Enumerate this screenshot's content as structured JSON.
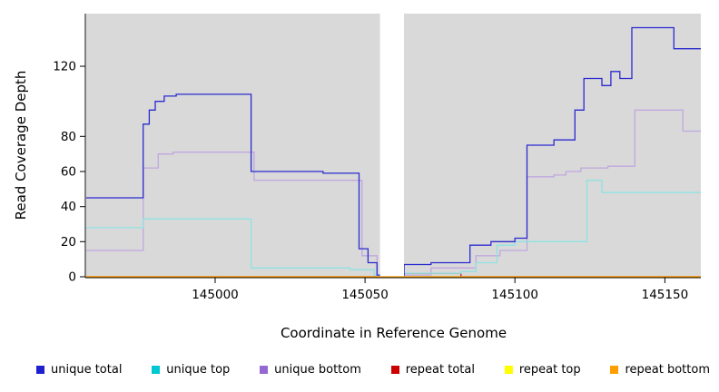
{
  "chart_data": {
    "type": "line",
    "step": true,
    "title": "",
    "xlabel": "Coordinate in Reference Genome",
    "ylabel": "Read Coverage Depth",
    "xlim": [
      144957,
      145162
    ],
    "ylim": [
      0,
      150
    ],
    "x_ticks": [
      145000,
      145050,
      145100,
      145150
    ],
    "y_ticks": [
      0,
      20,
      40,
      60,
      80,
      120
    ],
    "panel_color": "#d9d9d9",
    "gap": {
      "x_start": 145055,
      "x_end": 145063
    },
    "series": [
      {
        "name": "unique total",
        "color": "#1f1fce",
        "line_color": "#2a2ad0",
        "points": [
          [
            144957,
            45
          ],
          [
            144976,
            87
          ],
          [
            144978,
            95
          ],
          [
            144980,
            100
          ],
          [
            144983,
            103
          ],
          [
            144987,
            104
          ],
          [
            145012,
            60
          ],
          [
            145036,
            59
          ],
          [
            145048,
            16
          ],
          [
            145051,
            8
          ],
          [
            145054,
            1
          ],
          [
            145063,
            7
          ],
          [
            145072,
            8
          ],
          [
            145085,
            18
          ],
          [
            145092,
            20
          ],
          [
            145100,
            22
          ],
          [
            145104,
            75
          ],
          [
            145113,
            78
          ],
          [
            145120,
            95
          ],
          [
            145123,
            113
          ],
          [
            145129,
            109
          ],
          [
            145132,
            117
          ],
          [
            145135,
            113
          ],
          [
            145139,
            142
          ],
          [
            145153,
            130
          ]
        ]
      },
      {
        "name": "unique top",
        "color": "#00c8d2",
        "line_color": "#90e2e2",
        "points": [
          [
            144957,
            28
          ],
          [
            144976,
            33
          ],
          [
            145012,
            5
          ],
          [
            145045,
            4
          ],
          [
            145053,
            1
          ],
          [
            145063,
            2
          ],
          [
            145082,
            3
          ],
          [
            145087,
            8
          ],
          [
            145094,
            18
          ],
          [
            145100,
            20
          ],
          [
            145124,
            55
          ],
          [
            145129,
            48
          ]
        ]
      },
      {
        "name": "unique bottom",
        "color": "#9468d2",
        "line_color": "#c0a8e0",
        "points": [
          [
            144957,
            15
          ],
          [
            144976,
            62
          ],
          [
            144981,
            70
          ],
          [
            144986,
            71
          ],
          [
            145013,
            55
          ],
          [
            145049,
            12
          ],
          [
            145054,
            1
          ],
          [
            145063,
            1
          ],
          [
            145072,
            5
          ],
          [
            145087,
            12
          ],
          [
            145095,
            15
          ],
          [
            145104,
            57
          ],
          [
            145113,
            58
          ],
          [
            145117,
            60
          ],
          [
            145122,
            62
          ],
          [
            145131,
            63
          ],
          [
            145140,
            95
          ],
          [
            145156,
            83
          ]
        ]
      },
      {
        "name": "repeat total",
        "color": "#cd0000",
        "line_color": "#cd2626",
        "points": [
          [
            144957,
            0
          ],
          [
            145063,
            2
          ],
          [
            145082,
            0
          ]
        ]
      },
      {
        "name": "repeat top",
        "color": "#ffff00",
        "line_color": "#f2e400",
        "points": [
          [
            144957,
            0
          ]
        ]
      },
      {
        "name": "repeat bottom",
        "color": "#ff9e00",
        "line_color": "#ff9e00",
        "points": [
          [
            144957,
            0
          ]
        ]
      }
    ]
  }
}
